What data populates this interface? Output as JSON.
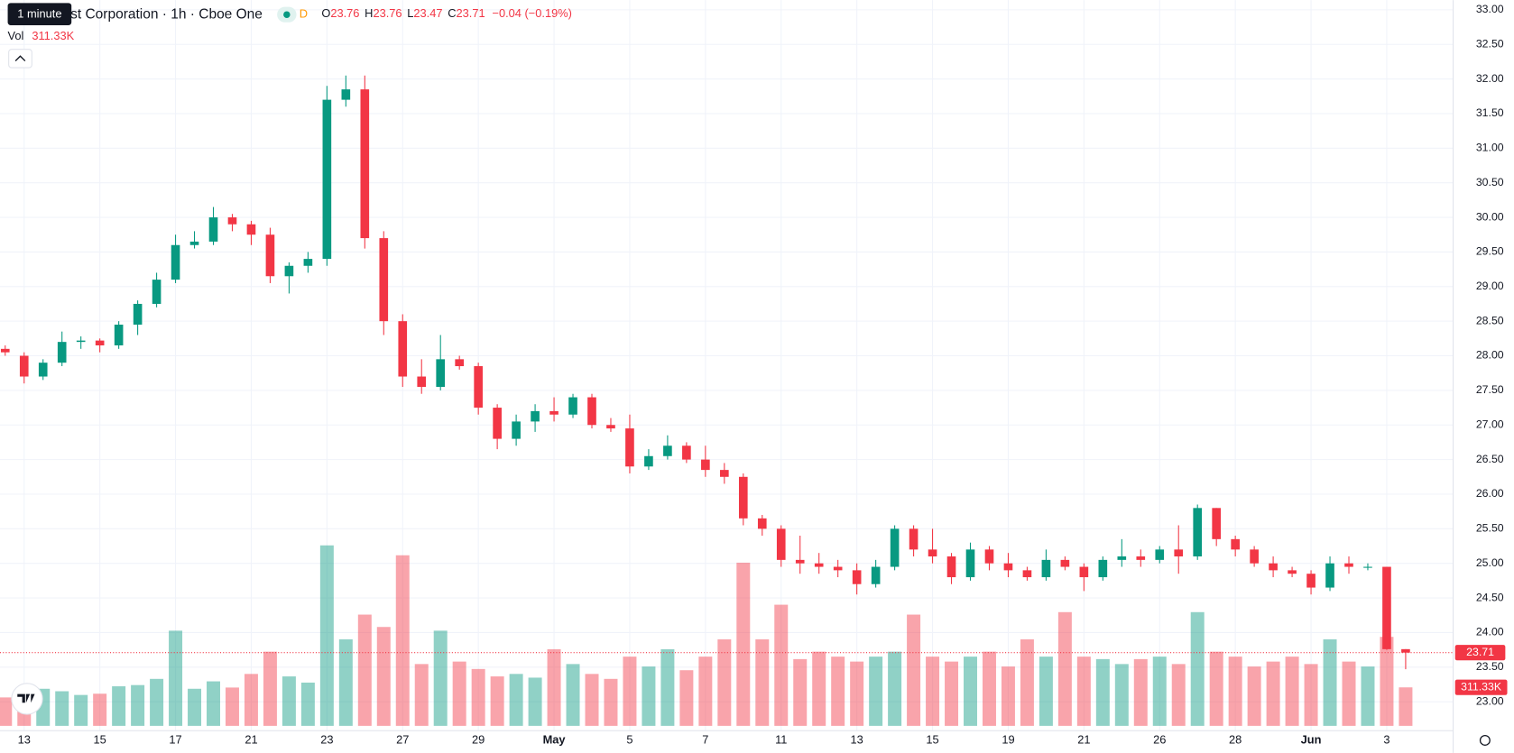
{
  "chart_data": {
    "type": "candlestick",
    "title": "st Corporation · 1h · Cboe One",
    "interval_tooltip": "1 minute",
    "session_badge": "D",
    "ohlc_labels": [
      "O",
      "H",
      "L",
      "C"
    ],
    "change_label": "−0.04 (−0.19%)",
    "up_color": "#089981",
    "down_color": "#f23645",
    "categories": [
      null,
      "13",
      null,
      null,
      null,
      "15",
      null,
      null,
      null,
      "17",
      null,
      null,
      null,
      "21",
      null,
      null,
      null,
      "23",
      null,
      null,
      null,
      "27",
      null,
      null,
      null,
      "29",
      null,
      null,
      null,
      "May",
      null,
      null,
      null,
      "5",
      null,
      null,
      null,
      "7",
      null,
      null,
      null,
      "11",
      null,
      null,
      null,
      "13",
      null,
      null,
      null,
      "15",
      null,
      null,
      null,
      "19",
      null,
      null,
      null,
      "21",
      null,
      null,
      null,
      "26",
      null,
      null,
      null,
      "28",
      null,
      null,
      null,
      "Jun",
      null,
      null,
      null,
      "3",
      null
    ],
    "open": [
      28.1,
      28.0,
      27.7,
      27.9,
      28.2,
      28.22,
      28.15,
      28.45,
      28.75,
      29.1,
      29.6,
      29.65,
      30.0,
      29.9,
      29.75,
      29.15,
      29.3,
      29.4,
      31.7,
      31.85,
      29.7,
      28.5,
      27.7,
      27.55,
      27.95,
      27.85,
      27.25,
      26.8,
      27.05,
      27.2,
      27.15,
      27.4,
      27.0,
      26.95,
      26.4,
      26.55,
      26.7,
      26.5,
      26.35,
      26.25,
      25.65,
      25.5,
      25.05,
      25.0,
      24.95,
      24.9,
      24.7,
      24.95,
      25.5,
      25.2,
      25.1,
      24.8,
      25.2,
      25.0,
      24.9,
      24.8,
      25.05,
      24.95,
      24.8,
      25.05,
      25.1,
      25.05,
      25.2,
      25.1,
      25.8,
      25.35,
      25.2,
      25.0,
      24.9,
      24.85,
      24.65,
      25.0,
      24.95,
      24.95,
      23.76
    ],
    "high": [
      28.15,
      28.05,
      27.95,
      28.35,
      28.28,
      28.25,
      28.5,
      28.8,
      29.2,
      29.75,
      29.8,
      30.15,
      30.05,
      29.95,
      29.85,
      29.35,
      29.5,
      31.9,
      32.05,
      32.05,
      29.8,
      28.6,
      27.95,
      28.3,
      28.0,
      27.9,
      27.3,
      27.15,
      27.3,
      27.4,
      27.45,
      27.45,
      27.1,
      27.15,
      26.65,
      26.85,
      26.75,
      26.7,
      26.45,
      26.3,
      25.7,
      25.55,
      25.4,
      25.15,
      25.05,
      25.0,
      25.05,
      25.55,
      25.55,
      25.5,
      25.15,
      25.3,
      25.25,
      25.15,
      24.95,
      25.2,
      25.1,
      25.0,
      25.1,
      25.35,
      25.2,
      25.25,
      25.55,
      25.85,
      25.8,
      25.4,
      25.25,
      25.1,
      24.95,
      24.9,
      25.1,
      25.1,
      25.0,
      24.95,
      23.76
    ],
    "low": [
      28.0,
      27.6,
      27.65,
      27.85,
      28.1,
      28.05,
      28.1,
      28.3,
      28.7,
      29.05,
      29.55,
      29.6,
      29.8,
      29.6,
      29.05,
      28.9,
      29.2,
      29.3,
      31.6,
      29.55,
      28.3,
      27.55,
      27.45,
      27.5,
      27.8,
      27.15,
      26.65,
      26.7,
      26.9,
      27.05,
      27.1,
      26.95,
      26.9,
      26.3,
      26.35,
      26.5,
      26.45,
      26.25,
      26.15,
      25.55,
      25.4,
      24.95,
      24.85,
      24.85,
      24.8,
      24.55,
      24.65,
      24.9,
      25.1,
      25.0,
      24.7,
      24.75,
      24.9,
      24.8,
      24.75,
      24.75,
      24.9,
      24.6,
      24.75,
      24.95,
      24.95,
      25.0,
      24.85,
      25.05,
      25.25,
      25.1,
      24.95,
      24.8,
      24.8,
      24.55,
      24.6,
      24.85,
      24.9,
      23.75,
      23.47
    ],
    "close": [
      28.05,
      27.7,
      27.9,
      28.2,
      28.22,
      28.15,
      28.45,
      28.75,
      29.1,
      29.6,
      29.65,
      30.0,
      29.9,
      29.75,
      29.15,
      29.3,
      29.4,
      31.7,
      31.85,
      29.7,
      28.5,
      27.7,
      27.55,
      27.95,
      27.85,
      27.25,
      26.8,
      27.05,
      27.2,
      27.15,
      27.4,
      27.0,
      26.95,
      26.4,
      26.55,
      26.7,
      26.5,
      26.35,
      26.25,
      25.65,
      25.5,
      25.05,
      25.0,
      24.95,
      24.9,
      24.7,
      24.95,
      25.5,
      25.2,
      25.1,
      24.8,
      25.2,
      25.0,
      24.9,
      24.8,
      25.05,
      24.95,
      24.8,
      25.05,
      25.1,
      25.05,
      25.2,
      25.1,
      25.8,
      25.35,
      25.2,
      25.0,
      24.9,
      24.85,
      24.65,
      25.0,
      24.95,
      24.95,
      23.76,
      23.71
    ],
    "volume": {
      "name": "Vol",
      "values": [
        230,
        260,
        300,
        280,
        250,
        260,
        320,
        330,
        380,
        770,
        300,
        360,
        310,
        420,
        600,
        400,
        350,
        1460,
        700,
        900,
        800,
        1380,
        500,
        770,
        520,
        460,
        400,
        420,
        390,
        620,
        500,
        420,
        380,
        560,
        480,
        620,
        450,
        560,
        700,
        1320,
        700,
        980,
        540,
        600,
        560,
        520,
        560,
        600,
        900,
        560,
        520,
        560,
        600,
        480,
        700,
        560,
        920,
        560,
        540,
        500,
        540,
        560,
        500,
        920,
        600,
        560,
        480,
        520,
        560,
        500,
        700,
        520,
        480,
        720,
        311.33
      ],
      "value_labels": [
        null,
        null,
        null,
        null,
        null,
        null,
        null,
        null,
        null,
        null,
        null,
        null,
        null,
        null,
        null,
        null,
        null,
        null,
        null,
        null,
        null,
        null,
        null,
        null,
        null,
        null,
        null,
        null,
        null,
        null,
        null,
        null,
        null,
        null,
        null,
        null,
        null,
        null,
        null,
        null,
        null,
        null,
        null,
        null,
        null,
        null,
        null,
        null,
        null,
        null,
        null,
        null,
        null,
        null,
        null,
        null,
        null,
        null,
        null,
        null,
        null,
        null,
        null,
        null,
        null,
        null,
        null,
        null,
        null,
        null,
        null,
        null,
        null,
        null,
        "311.33K"
      ]
    },
    "ylim": [
      22.6,
      33.07
    ],
    "yticks": [
      {
        "value": 23,
        "label": "23.00"
      },
      {
        "value": 23.5,
        "label": "23.50"
      },
      {
        "value": 24,
        "label": "24.00"
      },
      {
        "value": 24.5,
        "label": "24.50"
      },
      {
        "value": 25,
        "label": "25.00"
      },
      {
        "value": 25.5,
        "label": "25.50"
      },
      {
        "value": 26,
        "label": "26.00"
      },
      {
        "value": 26.5,
        "label": "26.50"
      },
      {
        "value": 27,
        "label": "27.00"
      },
      {
        "value": 27.5,
        "label": "27.50"
      },
      {
        "value": 28,
        "label": "28.00"
      },
      {
        "value": 28.5,
        "label": "28.50"
      },
      {
        "value": 29,
        "label": "29.00"
      },
      {
        "value": 29.5,
        "label": "29.50"
      },
      {
        "value": 30,
        "label": "30.00"
      },
      {
        "value": 30.5,
        "label": "30.50"
      },
      {
        "value": 31,
        "label": "31.00"
      },
      {
        "value": 31.5,
        "label": "31.50"
      },
      {
        "value": 32,
        "label": "32.00"
      },
      {
        "value": 32.5,
        "label": "32.50"
      },
      {
        "value": 33,
        "label": "33.00"
      }
    ],
    "grid": true
  }
}
